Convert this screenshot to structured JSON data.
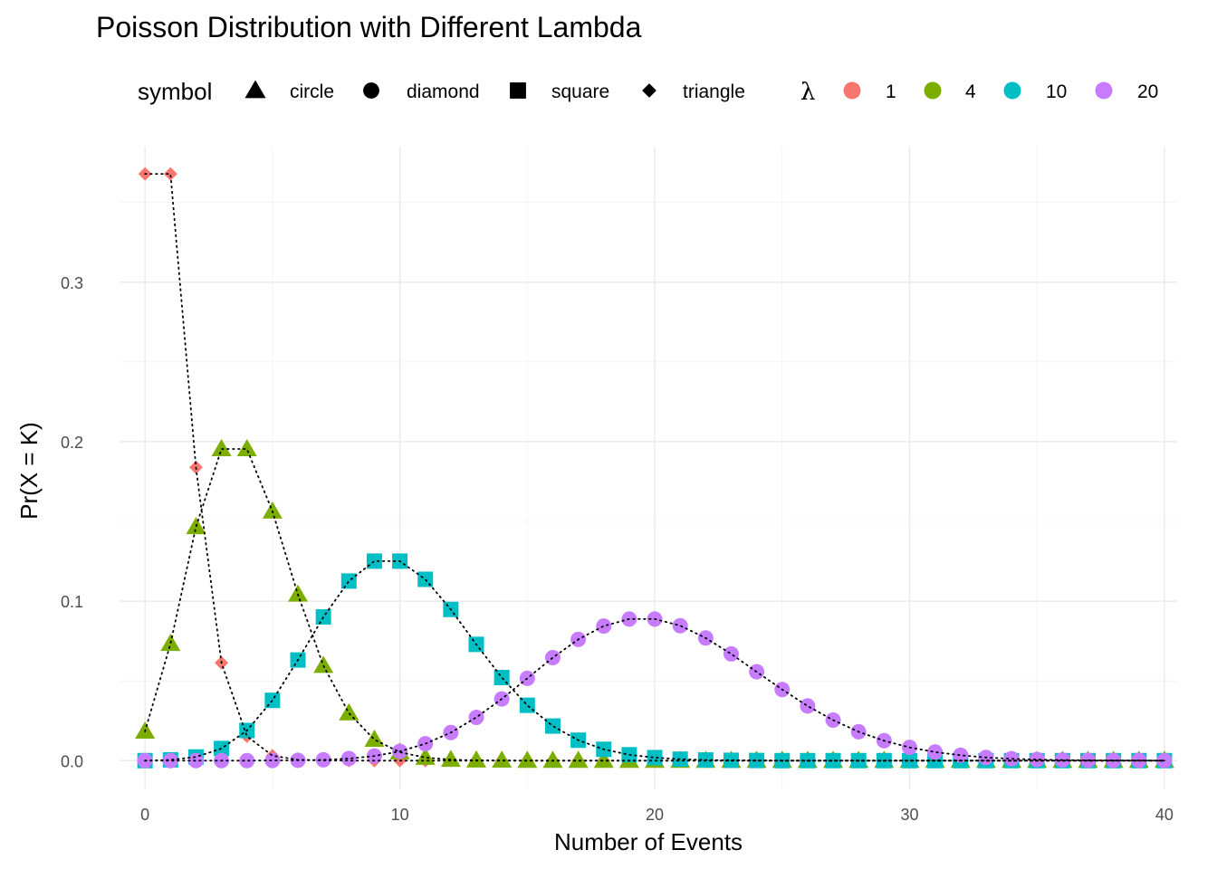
{
  "chart_data": {
    "type": "scatter",
    "title": "Poisson Distribution with Different Lambda",
    "xlabel": "Number of Events",
    "ylabel": "Pr(X = K)",
    "xlim": [
      -1,
      40.5
    ],
    "ylim": [
      -0.018,
      0.385
    ],
    "x_ticks": [
      0,
      10,
      20,
      30,
      40
    ],
    "y_ticks": [
      0.0,
      0.1,
      0.2,
      0.3
    ],
    "y_tick_labels": [
      "0.0",
      "0.1",
      "0.2",
      "0.3"
    ],
    "grid": true,
    "legend_position": "top",
    "shape_legend": {
      "title": "symbol",
      "entries": [
        {
          "label": "circle",
          "shape": "triangle"
        },
        {
          "label": "diamond",
          "shape": "circle"
        },
        {
          "label": "square",
          "shape": "square"
        },
        {
          "label": "triangle",
          "shape": "diamond"
        }
      ]
    },
    "color_legend": {
      "title": "λ",
      "entries": [
        {
          "label": "1",
          "color": "#F8766D"
        },
        {
          "label": "4",
          "color": "#7CAE00"
        },
        {
          "label": "10",
          "color": "#00BFC4"
        },
        {
          "label": "20",
          "color": "#C77CFF"
        }
      ]
    },
    "x": [
      0,
      1,
      2,
      3,
      4,
      5,
      6,
      7,
      8,
      9,
      10,
      11,
      12,
      13,
      14,
      15,
      16,
      17,
      18,
      19,
      20,
      21,
      22,
      23,
      24,
      25,
      26,
      27,
      28,
      29,
      30,
      31,
      32,
      33,
      34,
      35,
      36,
      37,
      38,
      39,
      40
    ],
    "series": [
      {
        "name": "1",
        "color": "#F8766D",
        "shape": "diamond",
        "values": [
          0.3679,
          0.3679,
          0.1839,
          0.0613,
          0.0153,
          0.0031,
          0.0005,
          0.0001,
          0.0,
          0.0,
          0.0,
          0.0,
          0.0,
          0.0,
          0.0,
          0.0,
          0.0,
          0.0,
          0.0,
          0.0,
          0.0,
          0.0,
          0.0,
          0.0,
          0.0,
          0.0,
          0.0,
          0.0,
          0.0,
          0.0,
          0.0,
          0.0,
          0.0,
          0.0,
          0.0,
          0.0,
          0.0,
          0.0,
          0.0,
          0.0,
          0.0
        ]
      },
      {
        "name": "4",
        "color": "#7CAE00",
        "shape": "triangle",
        "values": [
          0.0183,
          0.0733,
          0.1465,
          0.1954,
          0.1954,
          0.1563,
          0.1042,
          0.0595,
          0.0298,
          0.0132,
          0.0053,
          0.0019,
          0.0006,
          0.0002,
          0.0001,
          0.0,
          0.0,
          0.0,
          0.0,
          0.0,
          0.0,
          0.0,
          0.0,
          0.0,
          0.0,
          0.0,
          0.0,
          0.0,
          0.0,
          0.0,
          0.0,
          0.0,
          0.0,
          0.0,
          0.0,
          0.0,
          0.0,
          0.0,
          0.0,
          0.0,
          0.0
        ]
      },
      {
        "name": "10",
        "color": "#00BFC4",
        "shape": "square",
        "values": [
          0.0,
          0.0005,
          0.0023,
          0.0076,
          0.0189,
          0.0378,
          0.0631,
          0.0901,
          0.1126,
          0.1251,
          0.1251,
          0.1137,
          0.0948,
          0.0729,
          0.0521,
          0.0347,
          0.0217,
          0.0128,
          0.0071,
          0.0037,
          0.0019,
          0.0009,
          0.0004,
          0.0002,
          0.0001,
          0.0,
          0.0,
          0.0,
          0.0,
          0.0,
          0.0,
          0.0,
          0.0,
          0.0,
          0.0,
          0.0,
          0.0,
          0.0,
          0.0,
          0.0,
          0.0
        ]
      },
      {
        "name": "20",
        "color": "#C77CFF",
        "shape": "circle",
        "values": [
          0.0,
          0.0,
          0.0,
          0.0,
          0.0,
          0.0001,
          0.0002,
          0.0005,
          0.0013,
          0.0029,
          0.0058,
          0.0106,
          0.0176,
          0.0271,
          0.0387,
          0.0516,
          0.0646,
          0.076,
          0.0844,
          0.0888,
          0.0888,
          0.0846,
          0.0769,
          0.0669,
          0.0557,
          0.0446,
          0.0343,
          0.0254,
          0.0181,
          0.0125,
          0.0083,
          0.0054,
          0.0034,
          0.002,
          0.0012,
          0.0007,
          0.0004,
          0.0002,
          0.0001,
          0.0001,
          0.0
        ]
      }
    ]
  }
}
